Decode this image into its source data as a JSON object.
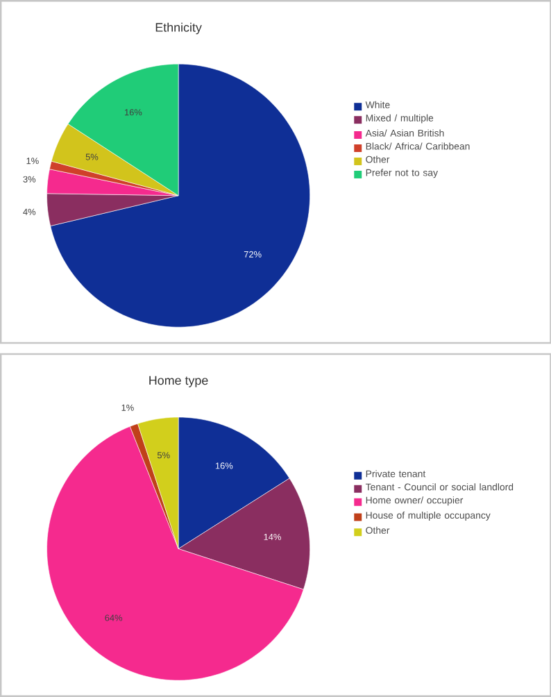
{
  "chart_data": [
    {
      "type": "pie",
      "title": "Ethnicity",
      "categories": [
        "White",
        "Mixed / multiple",
        "Asia/ Asian British",
        "Black/ Africa/ Caribbean",
        "Other",
        "Prefer not to say"
      ],
      "values": [
        72,
        4,
        3,
        1,
        5,
        16
      ],
      "value_labels": [
        "72%",
        "4%",
        "3%",
        "1%",
        "5%",
        "16%"
      ],
      "colors": [
        "#0f2f96",
        "#8a2e60",
        "#f52a8e",
        "#d0402a",
        "#d2c41c",
        "#20cc78"
      ],
      "legend": "right"
    },
    {
      "type": "pie",
      "title": "Home type",
      "categories": [
        "Private tenant",
        "Tenant - Council or social landlord",
        "Home owner/ occupier",
        "House of multiple occupancy",
        "Other"
      ],
      "values": [
        16,
        14,
        64,
        1,
        5
      ],
      "value_labels": [
        "16%",
        "14%",
        "64%",
        "1%",
        "5%"
      ],
      "colors": [
        "#0f2f96",
        "#8a2e60",
        "#f52a8e",
        "#c0401a",
        "#d2cf1c"
      ],
      "legend": "right"
    }
  ]
}
